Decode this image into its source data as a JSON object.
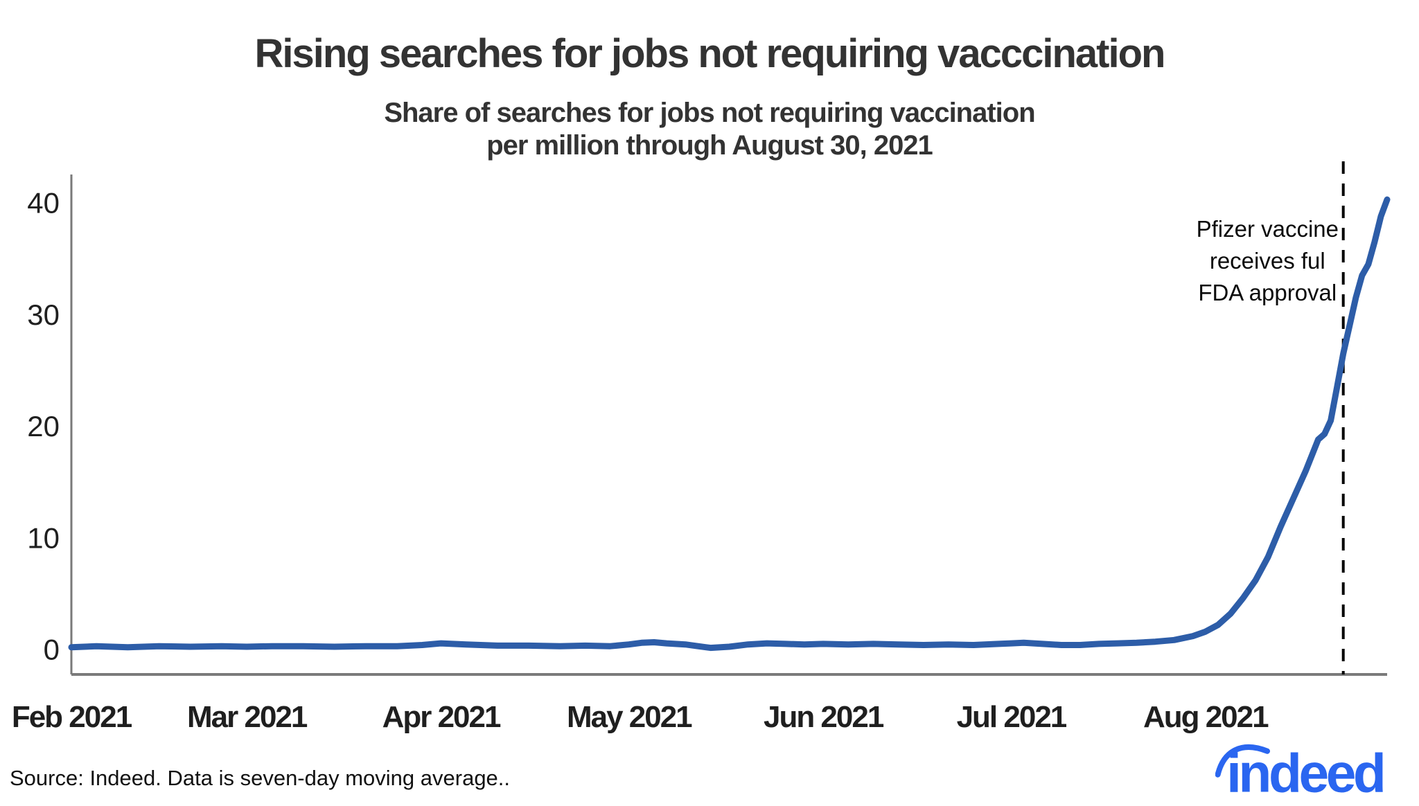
{
  "header": {
    "title": "Rising searches for jobs not requiring vacccination",
    "subtitle_line1": "Share of searches for jobs not requiring vaccination",
    "subtitle_line2": "per million through August 30, 2021"
  },
  "annotation": {
    "lines": [
      "Pfizer vaccine",
      "receives ful",
      "FDA approval"
    ]
  },
  "footer": {
    "source": "Source: Indeed. Data is seven-day moving average..",
    "logo_text": "indeed"
  },
  "colors": {
    "line": "#2d5da8",
    "dashed_line": "#000000",
    "axis": "#7a7a7a",
    "tick_label": "#1f1f1f",
    "title_text": "#333333",
    "logo_blue": "#2a66f0"
  },
  "chart_data": {
    "type": "line",
    "title": "Rising searches for jobs not requiring vacccination",
    "subtitle": "Share of searches for jobs not requiring vaccination per million through August 30, 2021",
    "xlabel": "",
    "ylabel": "",
    "ylim": [
      0,
      40
    ],
    "y_ticks": [
      0,
      10,
      20,
      30,
      40
    ],
    "x_range": [
      "2021-02-01",
      "2021-08-30"
    ],
    "x_ticks": [
      {
        "label": "Feb 2021",
        "date": "2021-02-01"
      },
      {
        "label": "Mar 2021",
        "date": "2021-03-01"
      },
      {
        "label": "Apr 2021",
        "date": "2021-04-01"
      },
      {
        "label": "May 2021",
        "date": "2021-05-01"
      },
      {
        "label": "Jun 2021",
        "date": "2021-06-01"
      },
      {
        "label": "Jul 2021",
        "date": "2021-07-01"
      },
      {
        "label": "Aug 2021",
        "date": "2021-08-01"
      }
    ],
    "event_marker": {
      "date": "2021-08-23",
      "label": "Pfizer vaccine receives ful FDA approval"
    },
    "grid": false,
    "legend": "none",
    "series": [
      {
        "name": "Share of searches for jobs not requiring vaccination per million (seven-day moving average)",
        "points": [
          [
            "2021-02-01",
            0.2
          ],
          [
            "2021-02-05",
            0.3
          ],
          [
            "2021-02-10",
            0.2
          ],
          [
            "2021-02-15",
            0.3
          ],
          [
            "2021-02-20",
            0.25
          ],
          [
            "2021-02-25",
            0.3
          ],
          [
            "2021-03-01",
            0.25
          ],
          [
            "2021-03-05",
            0.3
          ],
          [
            "2021-03-10",
            0.3
          ],
          [
            "2021-03-15",
            0.25
          ],
          [
            "2021-03-20",
            0.3
          ],
          [
            "2021-03-25",
            0.3
          ],
          [
            "2021-03-29",
            0.4
          ],
          [
            "2021-04-01",
            0.55
          ],
          [
            "2021-04-05",
            0.45
          ],
          [
            "2021-04-10",
            0.35
          ],
          [
            "2021-04-15",
            0.35
          ],
          [
            "2021-04-20",
            0.3
          ],
          [
            "2021-04-24",
            0.35
          ],
          [
            "2021-04-28",
            0.3
          ],
          [
            "2021-05-01",
            0.45
          ],
          [
            "2021-05-03",
            0.6
          ],
          [
            "2021-05-05",
            0.65
          ],
          [
            "2021-05-07",
            0.55
          ],
          [
            "2021-05-10",
            0.45
          ],
          [
            "2021-05-12",
            0.3
          ],
          [
            "2021-05-14",
            0.15
          ],
          [
            "2021-05-17",
            0.25
          ],
          [
            "2021-05-20",
            0.45
          ],
          [
            "2021-05-23",
            0.55
          ],
          [
            "2021-05-26",
            0.5
          ],
          [
            "2021-05-29",
            0.45
          ],
          [
            "2021-06-01",
            0.5
          ],
          [
            "2021-06-05",
            0.45
          ],
          [
            "2021-06-09",
            0.5
          ],
          [
            "2021-06-13",
            0.45
          ],
          [
            "2021-06-17",
            0.4
          ],
          [
            "2021-06-21",
            0.45
          ],
          [
            "2021-06-25",
            0.4
          ],
          [
            "2021-06-29",
            0.5
          ],
          [
            "2021-07-01",
            0.55
          ],
          [
            "2021-07-03",
            0.6
          ],
          [
            "2021-07-06",
            0.5
          ],
          [
            "2021-07-09",
            0.4
          ],
          [
            "2021-07-12",
            0.4
          ],
          [
            "2021-07-15",
            0.5
          ],
          [
            "2021-07-18",
            0.55
          ],
          [
            "2021-07-21",
            0.6
          ],
          [
            "2021-07-24",
            0.7
          ],
          [
            "2021-07-27",
            0.85
          ],
          [
            "2021-07-30",
            1.2
          ],
          [
            "2021-08-01",
            1.6
          ],
          [
            "2021-08-03",
            2.2
          ],
          [
            "2021-08-05",
            3.2
          ],
          [
            "2021-08-07",
            4.6
          ],
          [
            "2021-08-09",
            6.2
          ],
          [
            "2021-08-11",
            8.3
          ],
          [
            "2021-08-13",
            11.0
          ],
          [
            "2021-08-15",
            13.5
          ],
          [
            "2021-08-17",
            16.0
          ],
          [
            "2021-08-19",
            18.8
          ],
          [
            "2021-08-20",
            19.3
          ],
          [
            "2021-08-21",
            20.5
          ],
          [
            "2021-08-22",
            23.5
          ],
          [
            "2021-08-23",
            26.5
          ],
          [
            "2021-08-24",
            29.0
          ],
          [
            "2021-08-25",
            31.5
          ],
          [
            "2021-08-26",
            33.5
          ],
          [
            "2021-08-27",
            34.5
          ],
          [
            "2021-08-28",
            36.5
          ],
          [
            "2021-08-29",
            38.8
          ],
          [
            "2021-08-30",
            40.3
          ]
        ]
      }
    ]
  }
}
